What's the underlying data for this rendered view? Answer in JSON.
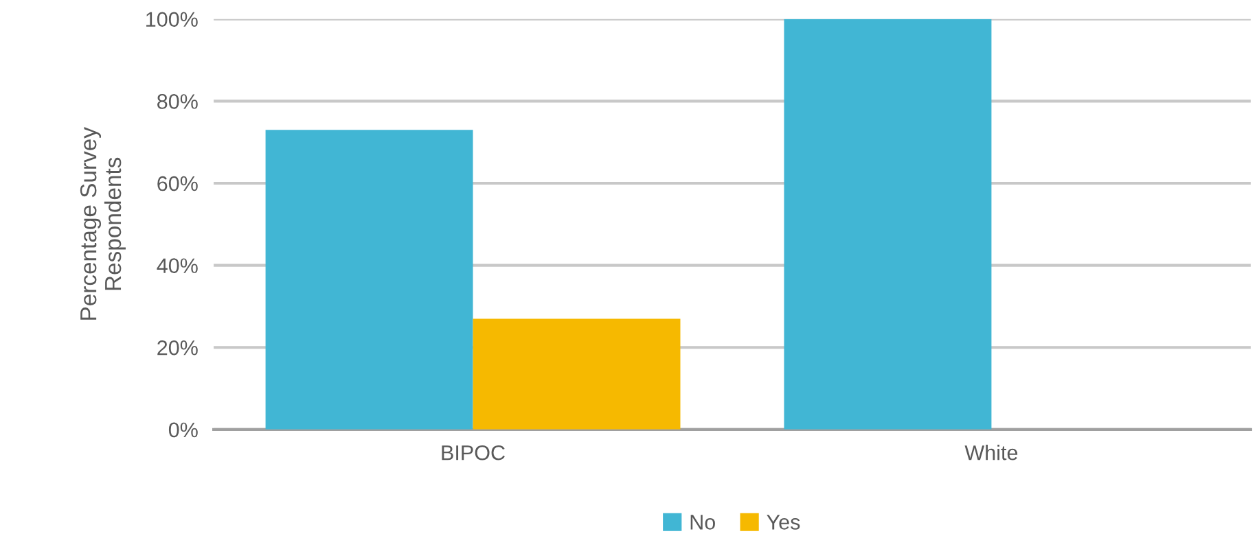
{
  "chart_data": {
    "type": "bar",
    "ylabel": "Percentage Survey\nRespondents",
    "categories": [
      "BIPOC",
      "White"
    ],
    "series": [
      {
        "name": "No",
        "color": "#41b6d4",
        "values": [
          73,
          100
        ]
      },
      {
        "name": "Yes",
        "color": "#f6b900",
        "values": [
          27,
          null
        ]
      }
    ],
    "ylim": [
      0,
      100
    ],
    "yticks": [
      {
        "value": 0,
        "label": "0%"
      },
      {
        "value": 20,
        "label": "20%"
      },
      {
        "value": 40,
        "label": "40%"
      },
      {
        "value": 60,
        "label": "60%"
      },
      {
        "value": 80,
        "label": "80%"
      },
      {
        "value": 100,
        "label": "100%"
      }
    ],
    "grid": "y",
    "legend": "bottom"
  }
}
